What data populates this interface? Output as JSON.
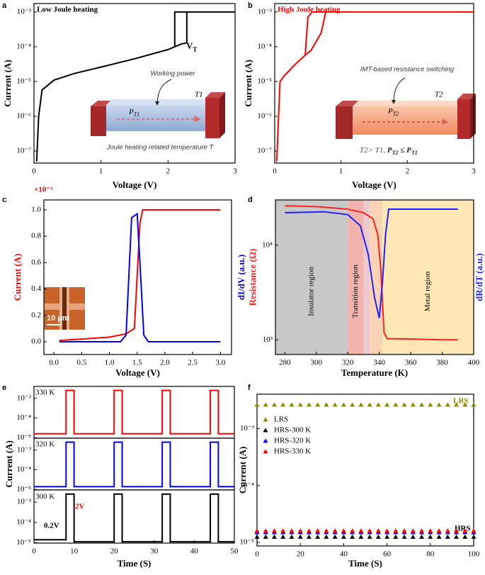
{
  "chart_data": [
    {
      "type": "line",
      "panel_label": "a",
      "title": "Low Joule heating",
      "xlabel": "Voltage (V)",
      "ylabel": "Current (A)",
      "xlim": [
        0,
        3
      ],
      "xticks": [
        0,
        1,
        2,
        3
      ],
      "yscale": "log",
      "ylim": [
        4.5e-08,
        0.00175
      ],
      "yticks": [
        {
          "value": 1e-07,
          "label": "10⁻⁷"
        },
        {
          "value": 1e-06,
          "label": "10⁻⁶"
        },
        {
          "value": 1e-05,
          "label": "10⁻⁵"
        },
        {
          "value": 0.0001,
          "label": "10⁻⁴"
        },
        {
          "value": 0.001,
          "label": "10⁻³"
        }
      ],
      "series": [
        {
          "color": "#000000",
          "x": [
            0.04,
            0.07,
            0.12,
            0.3,
            0.6,
            1.0,
            1.5,
            2.0,
            2.2,
            2.28,
            2.28,
            3.0
          ],
          "values": [
            5e-08,
            1e-06,
            5.7e-06,
            1.1e-05,
            1.7e-05,
            2.6e-05,
            4.5e-05,
            8.3e-05,
            0.00012,
            0.00013,
            0.001,
            0.001
          ]
        },
        {
          "color": "#000000",
          "x": [
            2.28,
            2.1,
            2.1
          ],
          "values": [
            0.001,
            0.001,
            0.000105
          ]
        }
      ],
      "annotations": {
        "threshold_symbol": "V",
        "threshold_subscript": "T",
        "inset_caption": "Working power",
        "power_symbol": "P",
        "power_subscript": "T1",
        "temperature_label": "T1",
        "inset_footer": "Joule heating related temperature T"
      }
    },
    {
      "type": "line",
      "panel_label": "b",
      "title": "High Joule heating",
      "xlabel": "Voltage (V)",
      "ylabel": "Current (A)",
      "xlim": [
        0,
        3
      ],
      "xticks": [
        0,
        1,
        2,
        3
      ],
      "yscale": "log",
      "ylim": [
        4.5e-08,
        0.00175
      ],
      "yticks": [
        {
          "value": 1e-07,
          "label": "10⁻⁷"
        },
        {
          "value": 1e-06,
          "label": "10⁻⁶"
        },
        {
          "value": 1e-05,
          "label": "10⁻⁵"
        },
        {
          "value": 0.0001,
          "label": "10⁻⁴"
        },
        {
          "value": 0.001,
          "label": "10⁻³"
        }
      ],
      "series": [
        {
          "color": "#ff0000",
          "x": [
            0.03,
            0.08,
            0.15,
            0.3,
            0.45,
            0.55,
            0.7,
            0.77,
            3.0
          ],
          "values": [
            5e-08,
            1e-05,
            1.5e-05,
            3e-05,
            5.5e-05,
            8e-05,
            0.00025,
            0.001,
            0.001
          ]
        },
        {
          "color": "#ff0000",
          "x": [
            0.77,
            0.56,
            0.5,
            0.46
          ],
          "values": [
            0.001,
            0.001,
            0.0007,
            6e-05
          ]
        }
      ],
      "annotations": {
        "inset_caption": "IMT-based resistance switching",
        "power_symbol": "P",
        "power_subscript": "T2",
        "temperature_label": "T2",
        "condition": [
          "T2> T1, ",
          "P",
          "T2",
          " ≤ ",
          "P",
          "T1"
        ]
      }
    },
    {
      "type": "line",
      "panel_label": "c",
      "multiplier_label": "×10⁻³",
      "xlabel": "Voltage (V)",
      "ylabel": "Current (A)",
      "y2label": "dI/dV (a.u.)",
      "xlim": [
        -0.18,
        3.2
      ],
      "xticks": [
        {
          "value": 0,
          "label": "0.0"
        },
        0.5,
        {
          "value": 1,
          "label": "1.0"
        },
        1.5,
        {
          "value": 2,
          "label": "2.0"
        },
        2.5,
        {
          "value": 3,
          "label": "3.0"
        }
      ],
      "ylim": [
        -0.097,
        1.075
      ],
      "yticks": [
        {
          "value": 0,
          "label": "0.0"
        },
        0.2,
        0.4,
        0.6,
        0.8,
        {
          "value": 1,
          "label": "1.0"
        }
      ],
      "y2lim": [
        -0.097,
        1.075
      ],
      "series": [
        {
          "color": "#ff0000",
          "x": [
            0.1,
            0.5,
            1.0,
            1.3,
            1.45,
            1.55,
            1.6,
            3.0
          ],
          "values": [
            0.01,
            0.02,
            0.035,
            0.06,
            0.1,
            0.9,
            1.0,
            1.0
          ]
        },
        {
          "color": "#0000ff",
          "axis": "y2",
          "x": [
            0.1,
            1.2,
            1.3,
            1.4,
            1.5,
            1.55,
            1.62,
            1.7,
            3.0
          ],
          "values": [
            0.0,
            0.0,
            0.05,
            0.94,
            0.97,
            0.6,
            0.05,
            0.0,
            0.0
          ]
        }
      ],
      "annotations": {
        "scale_bar": "10 μm"
      }
    },
    {
      "type": "line",
      "panel_label": "d",
      "xlabel": "Temperature (K)",
      "ylabel": "Resistance (Ω)",
      "y2label": "dR/dT (a.u.)",
      "xlim": [
        274,
        400
      ],
      "xticks": [
        280,
        300,
        320,
        340,
        360,
        380,
        400
      ],
      "yscale": "log",
      "ylim": [
        700,
        30000
      ],
      "yticks": [
        {
          "value": 1000,
          "label": "10³"
        },
        {
          "value": 10000,
          "label": "10⁴"
        }
      ],
      "y2scale": "log",
      "y2lim": [
        700,
        30000
      ],
      "regions": [
        {
          "label": "Insulator region",
          "range": [
            274,
            320
          ],
          "color": "#c8c8c8"
        },
        {
          "label": "Transition region",
          "range": [
            320,
            330
          ],
          "color": "#f2b3ad"
        },
        {
          "range": [
            330,
            334
          ],
          "color": "#ecc9cf"
        },
        {
          "range": [
            334,
            342
          ],
          "color": "#f9d3b3"
        },
        {
          "label": "Metal region",
          "range": [
            342,
            400
          ],
          "color": "#fde8b5"
        }
      ],
      "series": [
        {
          "color": "#ff2020",
          "x": [
            280,
            300,
            320,
            330,
            336,
            339,
            341,
            343,
            345,
            360,
            380,
            390
          ],
          "values": [
            26000,
            25500,
            24000,
            22000,
            19000,
            13000,
            5500,
            1200,
            1030,
            1020,
            1000,
            1000
          ]
        },
        {
          "color": "#2020ff",
          "axis": "y2",
          "x": [
            280,
            305,
            320,
            328,
            333,
            337,
            340,
            342,
            344,
            346,
            390
          ],
          "values": [
            22000,
            22500,
            21000,
            16000,
            8000,
            2800,
            1700,
            4000,
            13000,
            24000,
            24000
          ]
        }
      ]
    },
    {
      "type": "line",
      "panel_label": "e",
      "xlim": [
        0,
        50
      ],
      "yscale": "log",
      "ylim": [
        9.5e-06,
        0.004
      ],
      "yticks": [
        {
          "value": 1e-05,
          "label": "10⁻⁵"
        },
        {
          "value": 0.0001,
          "label": "10⁻⁴"
        },
        {
          "value": 0.001,
          "label": "10⁻³"
        }
      ],
      "series": [
        {
          "color": "#ff0000",
          "x": [
            0,
            8,
            8,
            10,
            10,
            20,
            20,
            22,
            22,
            32,
            32,
            34,
            34,
            44,
            44,
            46,
            46,
            50
          ],
          "values": [
            1.6e-05,
            1.6e-05,
            0.0025,
            0.0025,
            1.6e-05,
            1.6e-05,
            0.0025,
            0.0025,
            1.6e-05,
            1.6e-05,
            0.0025,
            0.0025,
            1.6e-05,
            1.6e-05,
            0.0025,
            0.0025,
            1.6e-05,
            1.6e-05
          ]
        }
      ],
      "annotations": {
        "temperature": "330 K"
      }
    },
    {
      "type": "line",
      "ylabel": "Current (A)",
      "xlim": [
        0,
        50
      ],
      "yscale": "log",
      "ylim": [
        9.5e-06,
        0.004
      ],
      "yticks": [
        {
          "value": 1e-05,
          "label": "10⁻⁵"
        },
        {
          "value": 0.0001,
          "label": "10⁻⁴"
        },
        {
          "value": 0.001,
          "label": "10⁻³"
        }
      ],
      "series": [
        {
          "color": "#0000ff",
          "x": [
            0,
            8,
            8,
            10,
            10,
            20,
            20,
            22,
            22,
            32,
            32,
            34,
            34,
            44,
            44,
            46,
            46,
            50
          ],
          "values": [
            1.4e-05,
            1.4e-05,
            0.0025,
            0.0025,
            1.4e-05,
            1.4e-05,
            0.0025,
            0.0025,
            1.4e-05,
            1.4e-05,
            0.0025,
            0.0025,
            1.4e-05,
            1.4e-05,
            0.0025,
            0.0025,
            1.4e-05,
            1.4e-05
          ]
        }
      ],
      "annotations": {
        "temperature": "320 K"
      }
    },
    {
      "type": "line",
      "xlabel": "Time (S)",
      "xlim": [
        0,
        50
      ],
      "xticks": [
        0,
        10,
        20,
        30,
        40,
        50
      ],
      "yscale": "log",
      "ylim": [
        9.5e-06,
        0.004
      ],
      "yticks": [
        {
          "value": 1e-05,
          "label": "10⁻⁵"
        },
        {
          "value": 0.0001,
          "label": "10⁻⁴"
        },
        {
          "value": 0.001,
          "label": "10⁻³"
        }
      ],
      "series": [
        {
          "color": "#000000",
          "x": [
            0,
            8,
            8,
            10,
            10,
            20,
            20,
            22,
            22,
            32,
            32,
            34,
            34,
            44,
            44,
            46,
            46,
            50
          ],
          "values": [
            1.4e-05,
            1.4e-05,
            0.0025,
            0.0025,
            1.1e-05,
            1.1e-05,
            0.0025,
            0.0025,
            1.1e-05,
            1.1e-05,
            0.0025,
            0.0025,
            1.1e-05,
            1.1e-05,
            0.0025,
            0.0025,
            1.1e-05,
            1.1e-05
          ]
        }
      ],
      "annotations": {
        "temperature": "300 K",
        "high_voltage": "2V",
        "low_voltage": "0.2V"
      }
    },
    {
      "type": "scatter",
      "panel_label": "f",
      "xlabel": "Time (S)",
      "ylabel": "Current (A)",
      "xlim": [
        0,
        100
      ],
      "xticks": [
        0,
        20,
        40,
        60,
        80,
        100
      ],
      "yscale": "log",
      "ylim": [
        8.7e-06,
        0.004
      ],
      "yticks": [
        {
          "value": 1e-05,
          "label": "10⁻⁵"
        },
        {
          "value": 0.0001,
          "label": "10⁻⁴"
        },
        {
          "value": 0.001,
          "label": "10⁻³"
        }
      ],
      "legend": "upper left",
      "x": [
        0,
        4,
        8,
        12,
        16,
        20,
        24,
        28,
        32,
        36,
        40,
        44,
        48,
        52,
        56,
        60,
        64,
        68,
        72,
        76,
        80,
        84,
        88,
        92,
        96,
        100
      ],
      "series": [
        {
          "name": "LRS",
          "color": "#8b8b00",
          "values": [
            0.0026,
            0.0026,
            0.0026,
            0.0026,
            0.0026,
            0.0026,
            0.0026,
            0.0026,
            0.0026,
            0.0026,
            0.0026,
            0.0026,
            0.0026,
            0.0026,
            0.0026,
            0.0026,
            0.0026,
            0.0026,
            0.0026,
            0.0026,
            0.0026,
            0.0026,
            0.0026,
            0.0026,
            0.0026,
            0.0026
          ]
        },
        {
          "name": "HRS-300 K",
          "color": "#000000",
          "values": [
            1.25e-05,
            1.25e-05,
            1.25e-05,
            1.25e-05,
            1.25e-05,
            1.25e-05,
            1.25e-05,
            1.25e-05,
            1.25e-05,
            1.25e-05,
            1.25e-05,
            1.25e-05,
            1.25e-05,
            1.25e-05,
            1.25e-05,
            1.25e-05,
            1.25e-05,
            1.25e-05,
            1.25e-05,
            1.25e-05,
            1.25e-05,
            1.25e-05,
            1.25e-05,
            1.25e-05,
            1.25e-05,
            1.25e-05
          ]
        },
        {
          "name": "HRS-320 K",
          "color": "#0000ff",
          "values": [
            1.5e-05,
            1.5e-05,
            1.5e-05,
            1.5e-05,
            1.5e-05,
            1.5e-05,
            1.5e-05,
            1.5e-05,
            1.5e-05,
            1.5e-05,
            1.5e-05,
            1.5e-05,
            1.5e-05,
            1.5e-05,
            1.5e-05,
            1.5e-05,
            1.5e-05,
            1.5e-05,
            1.5e-05,
            1.5e-05,
            1.5e-05,
            1.5e-05,
            1.5e-05,
            1.5e-05,
            1.5e-05,
            1.5e-05
          ]
        },
        {
          "name": "HRS-330 K",
          "color": "#ff0000",
          "values": [
            1.6e-05,
            1.6e-05,
            1.6e-05,
            1.6e-05,
            1.6e-05,
            1.6e-05,
            1.6e-05,
            1.6e-05,
            1.6e-05,
            1.6e-05,
            1.6e-05,
            1.6e-05,
            1.6e-05,
            1.6e-05,
            1.6e-05,
            1.6e-05,
            1.6e-05,
            1.6e-05,
            1.6e-05,
            1.6e-05,
            1.6e-05,
            1.6e-05,
            1.6e-05,
            1.6e-05,
            1.6e-05,
            1.6e-05
          ]
        }
      ],
      "annotations": {
        "lrs_label": "LRS",
        "hrs_label": "HRS"
      }
    }
  ]
}
